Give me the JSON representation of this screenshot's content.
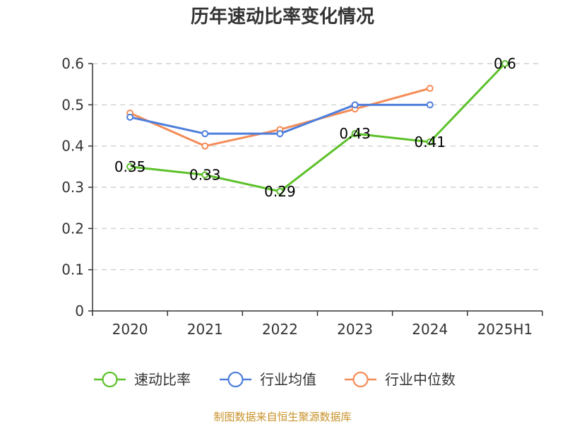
{
  "chart_data": {
    "type": "line",
    "title": "历年速动比率变化情况",
    "categories": [
      "2020",
      "2021",
      "2022",
      "2023",
      "2024",
      "2025H1"
    ],
    "y_ticks": [
      "0",
      "0.1",
      "0.2",
      "0.3",
      "0.4",
      "0.5",
      "0.6"
    ],
    "ylim": [
      0,
      0.6
    ],
    "grid": true,
    "legend_position": "bottom",
    "series": [
      {
        "name": "速动比率",
        "color": "#5cc12a",
        "values": [
          0.35,
          0.33,
          0.29,
          0.43,
          0.41,
          0.6
        ],
        "labels": [
          "0.35",
          "0.33",
          "0.29",
          "0.43",
          "0.41",
          "0.6"
        ]
      },
      {
        "name": "行业均值",
        "color": "#4f7fdc",
        "values": [
          0.47,
          0.43,
          0.43,
          0.5,
          0.5,
          null
        ]
      },
      {
        "name": "行业中位数",
        "color": "#f48c57",
        "values": [
          0.48,
          0.4,
          0.44,
          0.49,
          0.54,
          null
        ]
      }
    ],
    "source": "制图数据来自恒生聚源数据库"
  }
}
